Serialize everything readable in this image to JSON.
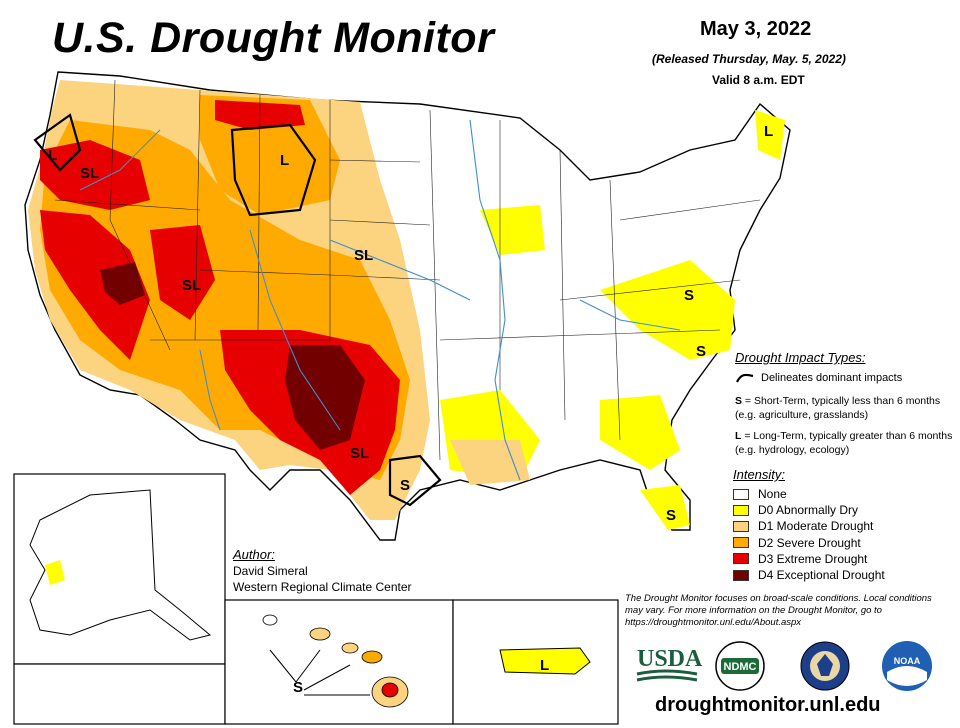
{
  "header": {
    "title": "U.S. Drought Monitor",
    "date": "May 3, 2022",
    "released": "(Released Thursday, May. 5, 2022)",
    "valid": "Valid 8 a.m. EDT"
  },
  "map_labels": {
    "or_sl": "SL",
    "wa_l": "L",
    "mt_l": "L",
    "ne_sl": "SL",
    "ut_sl": "SL",
    "tx_sl": "SL",
    "tx_s": "S",
    "va_s": "S",
    "nc_s": "S",
    "fl_s": "S",
    "me_l": "L",
    "hi_s": "S",
    "pr_l": "L"
  },
  "legend": {
    "impact_title": "Drought Impact Types:",
    "impact_line": "Delineates dominant impacts",
    "s_key": "S",
    "s_text": " = Short-Term, typically less than 6 months (e.g. agriculture, grasslands)",
    "l_key": "L",
    "l_text": " = Long-Term, typically greater than 6 months (e.g. hydrology, ecology)",
    "intensity_title": "Intensity:",
    "intensity": [
      {
        "label": "None",
        "color": "#ffffff"
      },
      {
        "label": "D0 Abnormally Dry",
        "color": "#ffff00"
      },
      {
        "label": "D1 Moderate Drought",
        "color": "#fcd37f"
      },
      {
        "label": "D2 Severe Drought",
        "color": "#ffaa00"
      },
      {
        "label": "D3 Extreme Drought",
        "color": "#e60000"
      },
      {
        "label": "D4 Exceptional Drought",
        "color": "#730000"
      }
    ]
  },
  "author": {
    "label": "Author:",
    "name": "David Simeral",
    "org": "Western Regional Climate Center"
  },
  "disclaimer": "The Drought Monitor focuses on broad-scale conditions. Local conditions may vary. For more information on the Drought Monitor, go to https://droughtmonitor.unl.edu/About.aspx",
  "logos": {
    "usda": "USDA",
    "ndmc": "NDMC",
    "noaa": "NOAA"
  },
  "site": "droughtmonitor.unl.edu",
  "colors": {
    "none": "#ffffff",
    "d0": "#ffff00",
    "d1": "#fcd37f",
    "d2": "#ffaa00",
    "d3": "#e60000",
    "d4": "#730000",
    "water": "#3e8ed0"
  }
}
